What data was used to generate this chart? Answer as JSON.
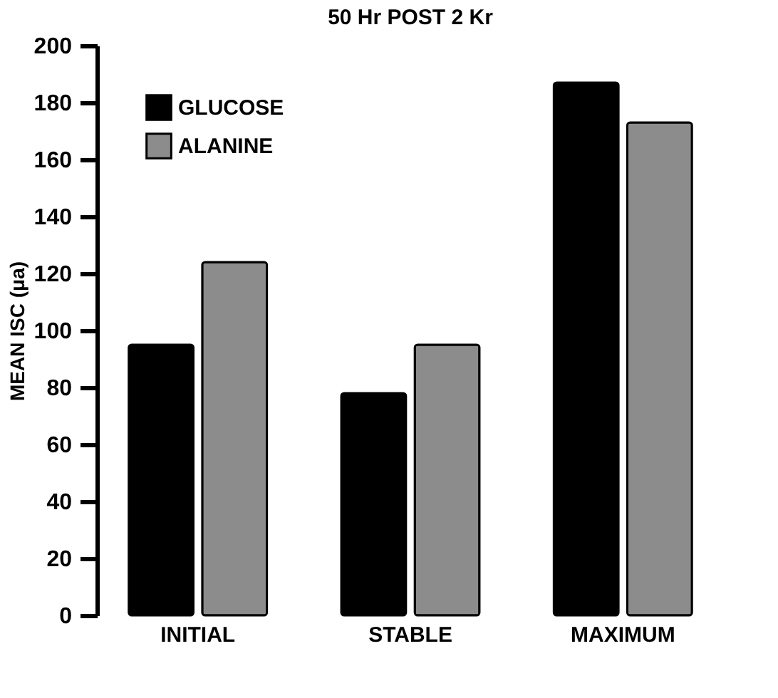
{
  "chart_data": {
    "type": "bar",
    "title": "50 Hr POST 2 Kr",
    "ylabel": "MEAN ISC (μa)",
    "categories": [
      "INITIAL",
      "STABLE",
      "MAXIMUM"
    ],
    "series": [
      {
        "name": "GLUCOSE",
        "color": "#000000",
        "values": [
          95,
          78,
          187
        ]
      },
      {
        "name": "ALANINE",
        "color": "#8c8c8c",
        "values": [
          124,
          95,
          173
        ]
      }
    ],
    "ylim": [
      0,
      200
    ],
    "yticks": [
      0,
      20,
      40,
      60,
      80,
      100,
      120,
      140,
      160,
      180,
      200
    ],
    "grid": false,
    "legend": "top left"
  }
}
